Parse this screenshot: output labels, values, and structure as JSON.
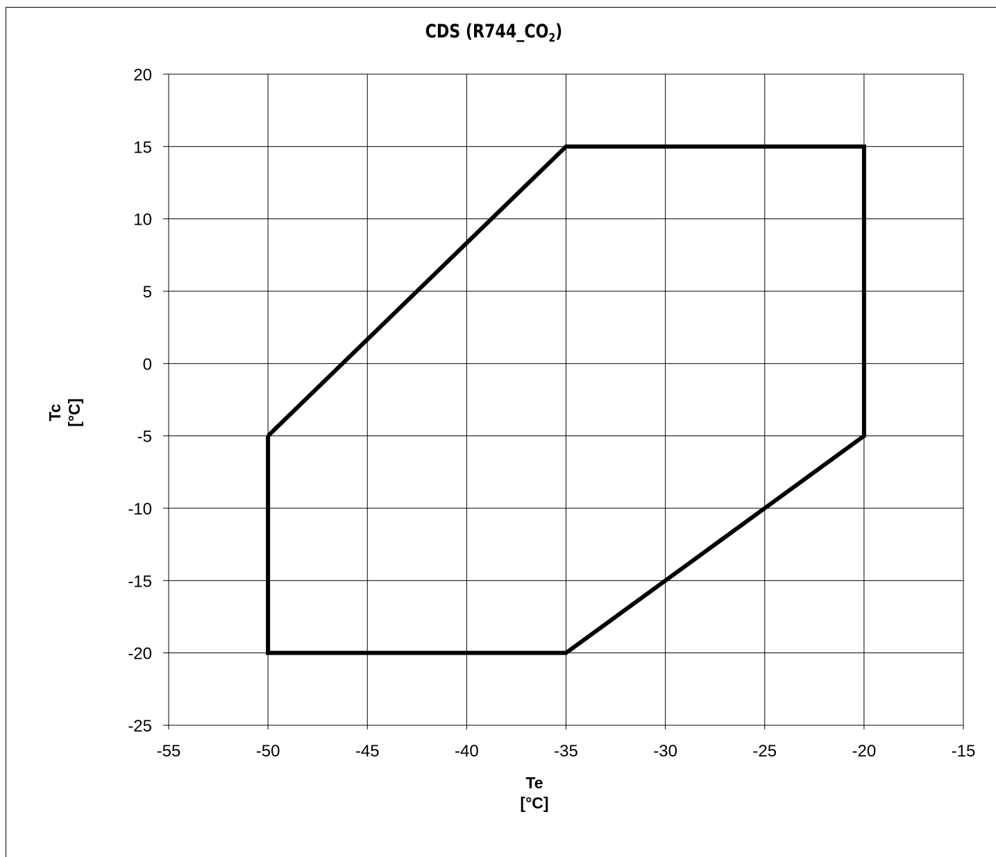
{
  "chart_data": {
    "type": "line",
    "title_main": "CDS (R744_CO",
    "title_sub": "2",
    "title_end": ")",
    "xlabel_line1": "Te",
    "xlabel_line2": "[°C]",
    "ylabel_line1": "Tc",
    "ylabel_line2": "[°C]",
    "xlim": [
      -55,
      -15
    ],
    "ylim": [
      -25,
      20
    ],
    "x_ticks": [
      -55,
      -50,
      -45,
      -40,
      -35,
      -30,
      -25,
      -20,
      -15
    ],
    "y_ticks": [
      20,
      15,
      10,
      5,
      0,
      -5,
      -10,
      -15,
      -20,
      -25
    ],
    "grid": true,
    "series": [
      {
        "color": "#000000",
        "closed": true,
        "x": [
          -50,
          -35,
          -20,
          -20,
          -35,
          -50,
          -50
        ],
        "y": [
          -5,
          15,
          15,
          -5,
          -20,
          -20,
          -5
        ]
      }
    ]
  }
}
